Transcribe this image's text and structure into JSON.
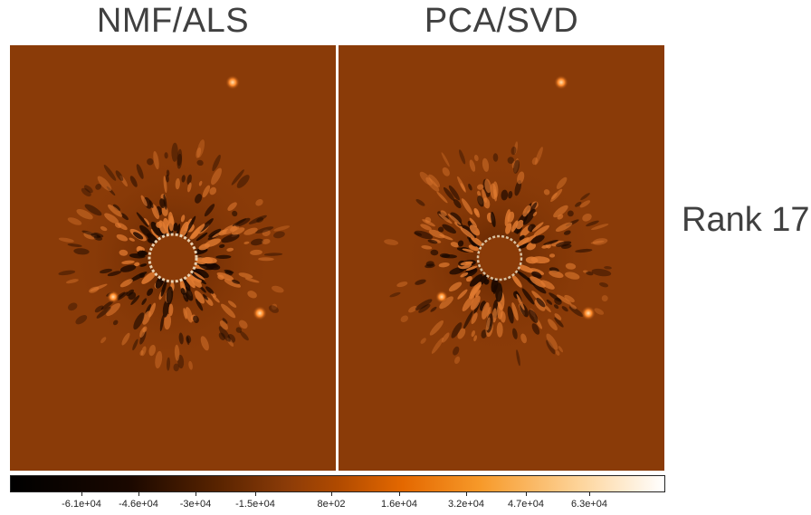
{
  "panels": [
    {
      "title": "NMF/ALS"
    },
    {
      "title": "PCA/SVD"
    }
  ],
  "row_label": "Rank 17",
  "colorbar": {
    "ticks": [
      "-6.1e+04",
      "-4.6e+04",
      "-3e+04",
      "-1.5e+04",
      "8e+02",
      "1.6e+04",
      "3.2e+04",
      "4.7e+04",
      "6.3e+04"
    ],
    "colors": [
      "#000000",
      "#1a0800",
      "#5a2400",
      "#8a3b08",
      "#b04a00",
      "#e46800",
      "#f79a2a",
      "#fdd49a",
      "#ffffff"
    ]
  },
  "colors": {
    "background": "#8a3b08",
    "point_source": "#ff8a2a"
  }
}
